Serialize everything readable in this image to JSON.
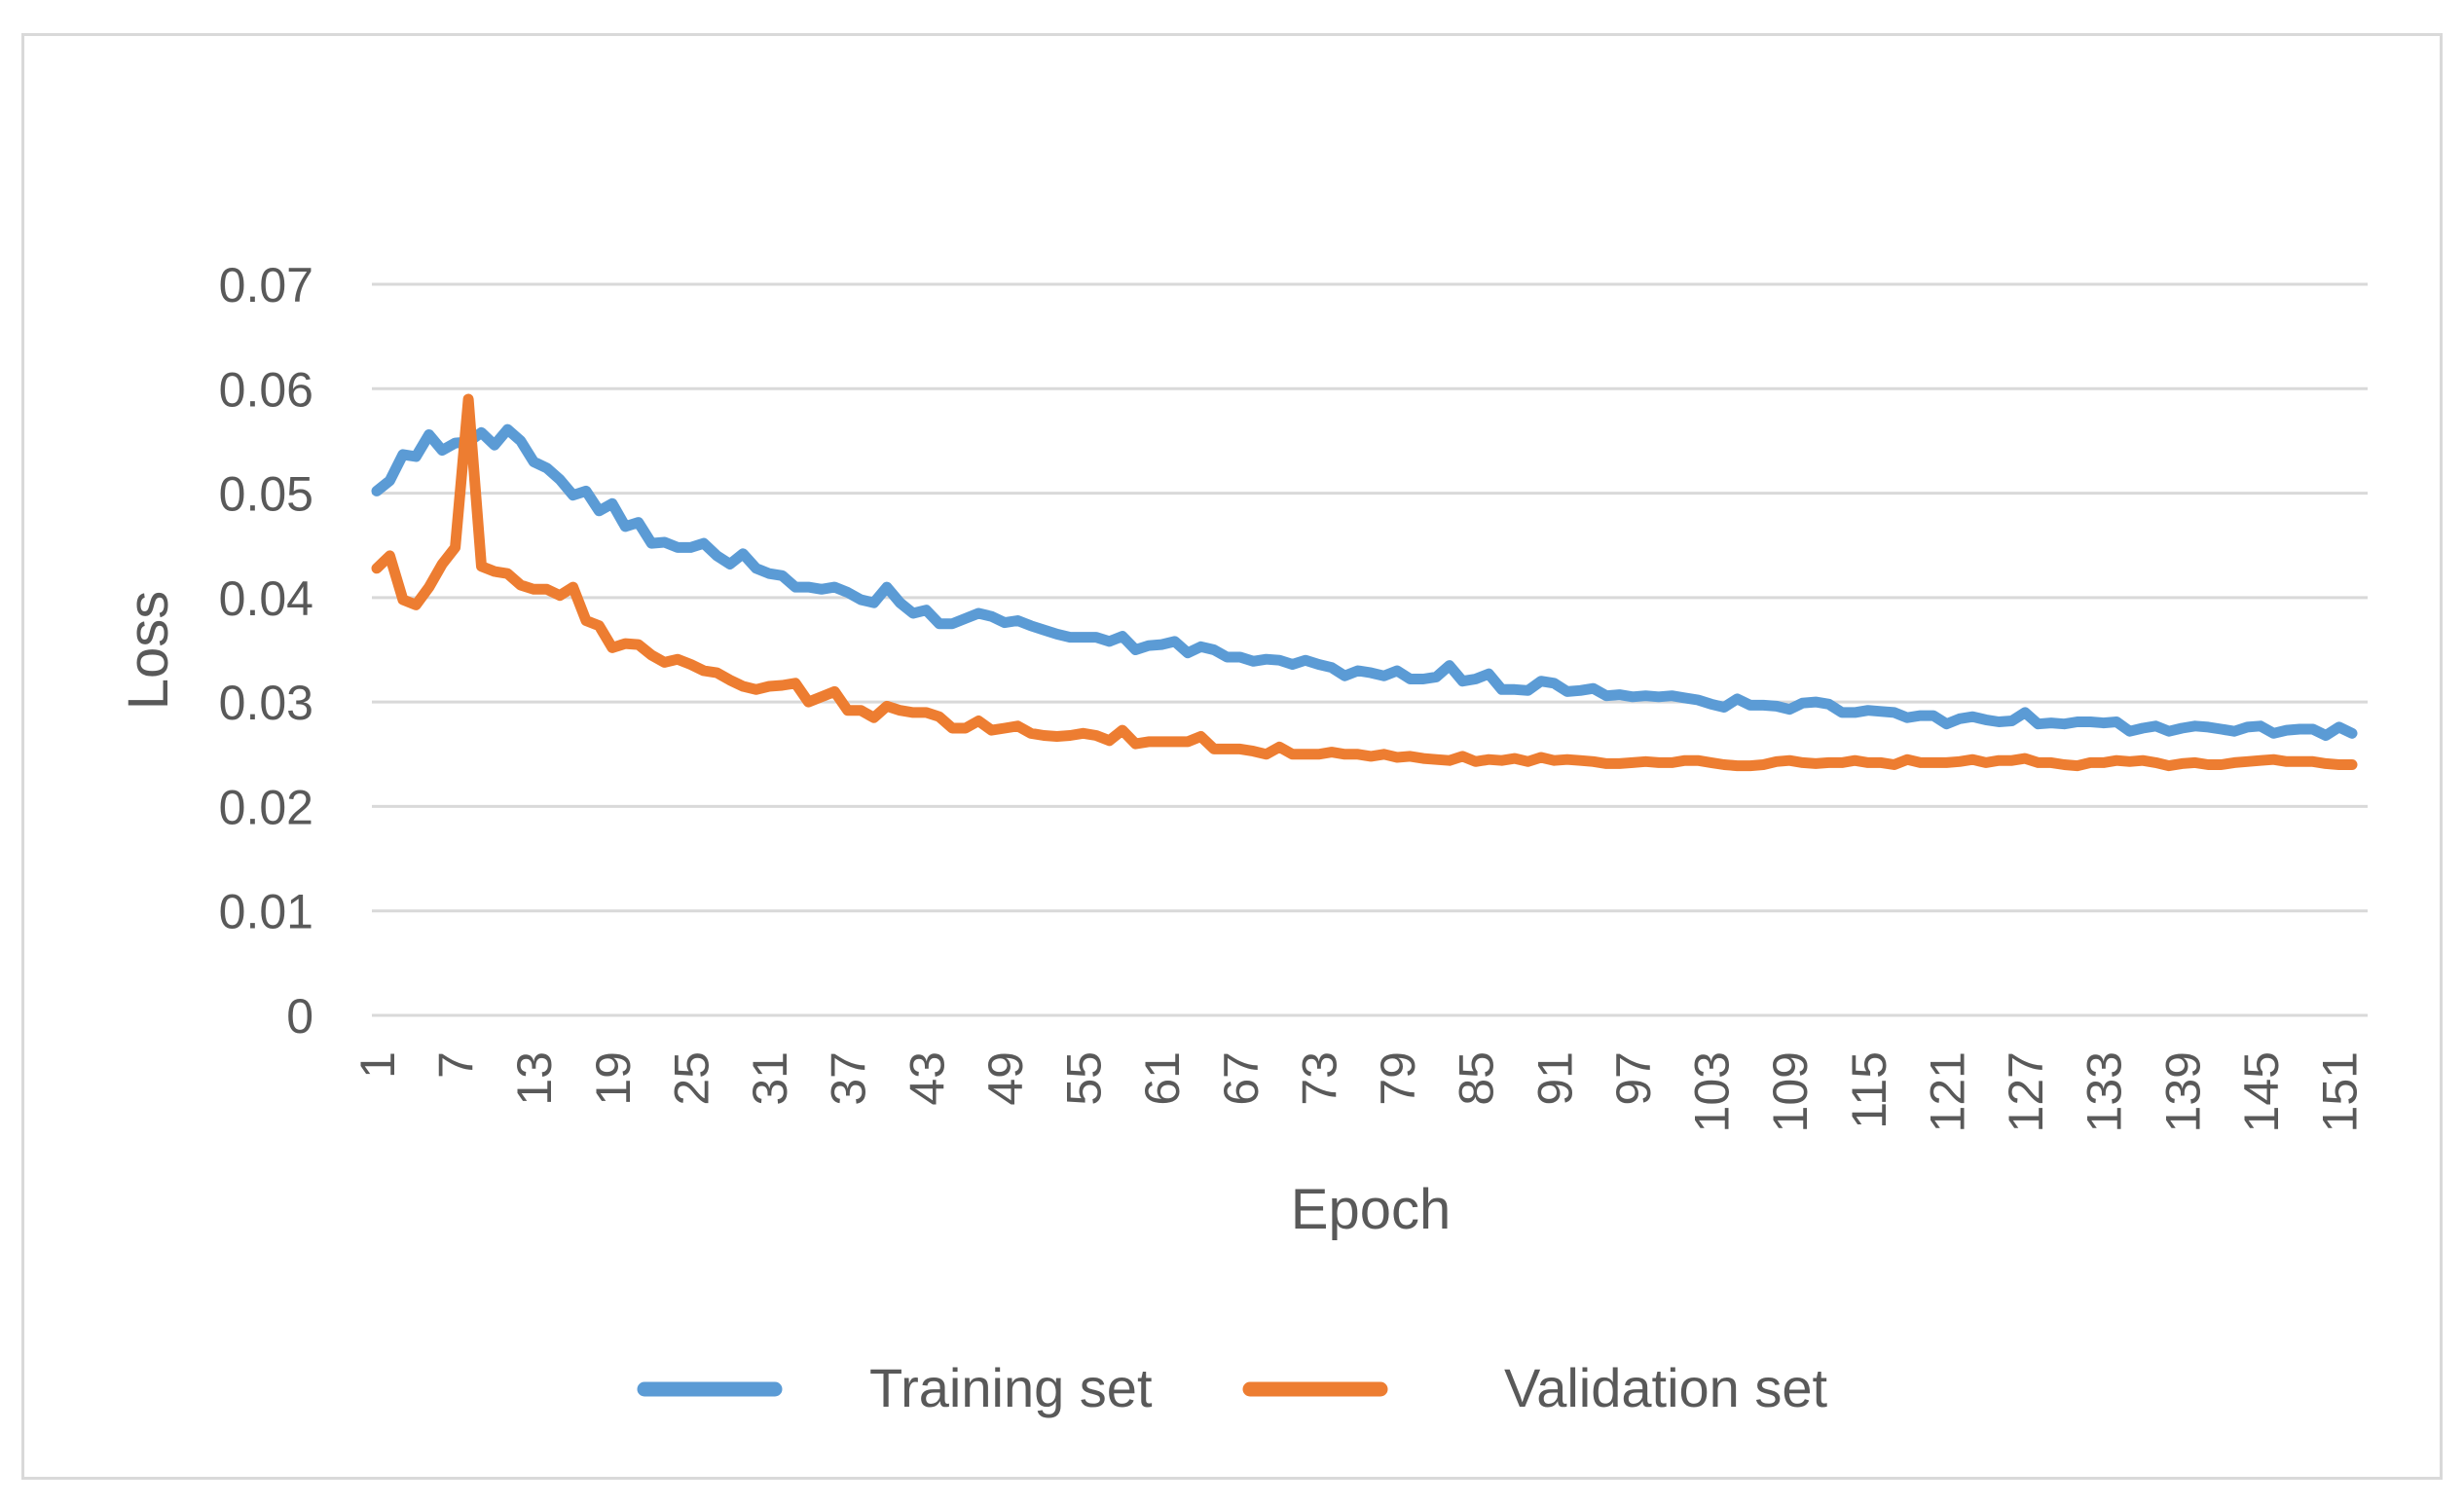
{
  "chart_data": {
    "type": "line",
    "title": "",
    "xlabel": "Epoch",
    "ylabel": "Loss",
    "ylim": [
      0,
      0.07
    ],
    "yticks": [
      "0",
      "0.01",
      "0.02",
      "0.03",
      "0.04",
      "0.05",
      "0.06",
      "0.07"
    ],
    "xticks": [
      "1",
      "7",
      "13",
      "19",
      "25",
      "31",
      "37",
      "43",
      "49",
      "55",
      "61",
      "67",
      "73",
      "79",
      "85",
      "91",
      "97",
      "103",
      "109",
      "115",
      "121",
      "127",
      "133",
      "139",
      "145",
      "151"
    ],
    "grid": true,
    "legend_position": "bottom",
    "series": [
      {
        "name": "Training set",
        "color": "#5B9BD5",
        "values": [
          0.0502,
          0.0512,
          0.0537,
          0.0535,
          0.0556,
          0.0541,
          0.0548,
          0.0549,
          0.0558,
          0.0546,
          0.0561,
          0.055,
          0.053,
          0.0524,
          0.0513,
          0.0498,
          0.0502,
          0.0483,
          0.049,
          0.0468,
          0.0472,
          0.0452,
          0.0453,
          0.0448,
          0.0448,
          0.0452,
          0.044,
          0.0432,
          0.0442,
          0.0428,
          0.0423,
          0.0421,
          0.041,
          0.041,
          0.0408,
          0.041,
          0.0405,
          0.0398,
          0.0395,
          0.041,
          0.0395,
          0.0385,
          0.0388,
          0.0375,
          0.0375,
          0.038,
          0.0385,
          0.0382,
          0.0376,
          0.0378,
          0.0373,
          0.0369,
          0.0365,
          0.0362,
          0.0362,
          0.0362,
          0.0358,
          0.0363,
          0.035,
          0.0354,
          0.0355,
          0.0358,
          0.0347,
          0.0353,
          0.035,
          0.0343,
          0.0343,
          0.0339,
          0.0341,
          0.034,
          0.0336,
          0.034,
          0.0336,
          0.0333,
          0.0325,
          0.033,
          0.0328,
          0.0325,
          0.033,
          0.0322,
          0.0322,
          0.0324,
          0.0335,
          0.032,
          0.0322,
          0.0327,
          0.0312,
          0.0312,
          0.0311,
          0.032,
          0.0318,
          0.031,
          0.0311,
          0.0313,
          0.0306,
          0.0307,
          0.0305,
          0.0306,
          0.0305,
          0.0306,
          0.0304,
          0.0302,
          0.0298,
          0.0295,
          0.0303,
          0.0297,
          0.0297,
          0.0296,
          0.0293,
          0.0299,
          0.03,
          0.0298,
          0.029,
          0.029,
          0.0292,
          0.0291,
          0.029,
          0.0285,
          0.0287,
          0.0287,
          0.0279,
          0.0284,
          0.0286,
          0.0283,
          0.0281,
          0.0282,
          0.029,
          0.0279,
          0.028,
          0.0279,
          0.0281,
          0.0281,
          0.028,
          0.0281,
          0.0272,
          0.0275,
          0.0277,
          0.0272,
          0.0275,
          0.0277,
          0.0276,
          0.0274,
          0.0272,
          0.0276,
          0.0277,
          0.027,
          0.0273,
          0.0274,
          0.0274,
          0.0268,
          0.0276,
          0.027
        ]
      },
      {
        "name": "Validation set",
        "color": "#ED7D31",
        "values": [
          0.0428,
          0.044,
          0.0398,
          0.0393,
          0.041,
          0.0432,
          0.0448,
          0.059,
          0.043,
          0.0425,
          0.0423,
          0.0412,
          0.0408,
          0.0408,
          0.0402,
          0.041,
          0.0378,
          0.0373,
          0.0352,
          0.0356,
          0.0355,
          0.0345,
          0.0338,
          0.0341,
          0.0336,
          0.033,
          0.0328,
          0.0321,
          0.0315,
          0.0312,
          0.0315,
          0.0316,
          0.0318,
          0.03,
          0.0305,
          0.031,
          0.0292,
          0.0292,
          0.0285,
          0.0296,
          0.0292,
          0.029,
          0.029,
          0.0286,
          0.0275,
          0.0275,
          0.0282,
          0.0273,
          0.0275,
          0.0277,
          0.027,
          0.0268,
          0.0267,
          0.0268,
          0.027,
          0.0268,
          0.0263,
          0.0273,
          0.026,
          0.0262,
          0.0262,
          0.0262,
          0.0262,
          0.0267,
          0.0255,
          0.0255,
          0.0255,
          0.0253,
          0.025,
          0.0257,
          0.025,
          0.025,
          0.025,
          0.0252,
          0.025,
          0.025,
          0.0248,
          0.025,
          0.0247,
          0.0248,
          0.0246,
          0.0245,
          0.0244,
          0.0248,
          0.0243,
          0.0245,
          0.0244,
          0.0246,
          0.0243,
          0.0247,
          0.0244,
          0.0245,
          0.0244,
          0.0243,
          0.0241,
          0.0241,
          0.0242,
          0.0243,
          0.0242,
          0.0242,
          0.0244,
          0.0244,
          0.0242,
          0.024,
          0.0239,
          0.0239,
          0.024,
          0.0243,
          0.0244,
          0.0242,
          0.0241,
          0.0242,
          0.0242,
          0.0244,
          0.0242,
          0.0242,
          0.024,
          0.0245,
          0.0242,
          0.0242,
          0.0242,
          0.0243,
          0.0245,
          0.0242,
          0.0244,
          0.0244,
          0.0246,
          0.0242,
          0.0242,
          0.024,
          0.0239,
          0.0242,
          0.0242,
          0.0244,
          0.0243,
          0.0244,
          0.0242,
          0.0239,
          0.0241,
          0.0242,
          0.024,
          0.024,
          0.0242,
          0.0243,
          0.0244,
          0.0245,
          0.0243,
          0.0243,
          0.0243,
          0.0241,
          0.024,
          0.024
        ]
      }
    ]
  }
}
